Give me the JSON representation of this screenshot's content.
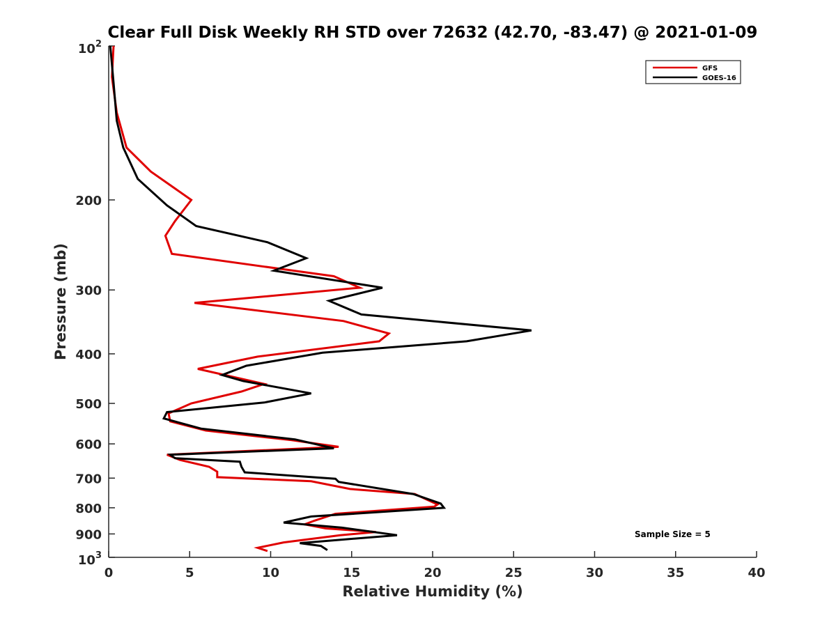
{
  "chart_data": {
    "type": "line",
    "title": "Clear Full Disk Weekly RH STD over 72632 (42.70, -83.47) @ 2021-01-09",
    "xlabel": "Relative Humidity (%)",
    "ylabel": "Pressure (mb)",
    "xlim": [
      0,
      40
    ],
    "ylim": [
      100,
      1000
    ],
    "yscale": "log",
    "y_reversed": true,
    "xticks": [
      "0",
      "5",
      "10",
      "15",
      "20",
      "25",
      "30",
      "35",
      "40"
    ],
    "yticks": [
      {
        "value": 100,
        "base": "10",
        "exp": "2",
        "label": ""
      },
      {
        "value": 200,
        "base": "",
        "exp": "",
        "label": "200"
      },
      {
        "value": 300,
        "base": "",
        "exp": "",
        "label": "300"
      },
      {
        "value": 400,
        "base": "",
        "exp": "",
        "label": "400"
      },
      {
        "value": 500,
        "base": "",
        "exp": "",
        "label": "500"
      },
      {
        "value": 600,
        "base": "",
        "exp": "",
        "label": "600"
      },
      {
        "value": 700,
        "base": "",
        "exp": "",
        "label": "700"
      },
      {
        "value": 800,
        "base": "",
        "exp": "",
        "label": "800"
      },
      {
        "value": 900,
        "base": "",
        "exp": "",
        "label": "900"
      },
      {
        "value": 1000,
        "base": "10",
        "exp": "3",
        "label": ""
      }
    ],
    "grid": false,
    "legend_position": "top-right",
    "annotation": "Sample Size = 5",
    "series": [
      {
        "name": "GFS",
        "color": "#e00000",
        "points": [
          [
            0.3,
            100
          ],
          [
            0.2,
            115
          ],
          [
            0.5,
            135
          ],
          [
            1.1,
            158
          ],
          [
            2.6,
            176
          ],
          [
            5.1,
            200
          ],
          [
            4.1,
            220
          ],
          [
            3.5,
            235
          ],
          [
            3.9,
            255
          ],
          [
            13.9,
            282
          ],
          [
            15.5,
            297
          ],
          [
            5.3,
            318
          ],
          [
            14.5,
            345
          ],
          [
            17.3,
            365
          ],
          [
            16.7,
            378
          ],
          [
            9.2,
            405
          ],
          [
            5.5,
            428
          ],
          [
            9.6,
            458
          ],
          [
            8.2,
            474
          ],
          [
            5.1,
            500
          ],
          [
            3.7,
            523
          ],
          [
            3.8,
            542
          ],
          [
            6.0,
            565
          ],
          [
            11.3,
            590
          ],
          [
            14.2,
            608
          ],
          [
            3.6,
            630
          ],
          [
            4.4,
            645
          ],
          [
            6.2,
            665
          ],
          [
            6.7,
            680
          ],
          [
            6.7,
            697
          ],
          [
            12.5,
            710
          ],
          [
            14.9,
            735
          ],
          [
            18.9,
            752
          ],
          [
            20.3,
            788
          ],
          [
            20.1,
            796
          ],
          [
            14.0,
            822
          ],
          [
            12.7,
            848
          ],
          [
            12.1,
            862
          ],
          [
            13.4,
            878
          ],
          [
            16.5,
            892
          ],
          [
            14.3,
            905
          ],
          [
            10.8,
            935
          ],
          [
            9.2,
            958
          ],
          [
            9.8,
            972
          ]
        ]
      },
      {
        "name": "GOES-16",
        "color": "#000000",
        "points": [
          [
            0.1,
            100
          ],
          [
            0.3,
            118
          ],
          [
            0.5,
            140
          ],
          [
            0.9,
            158
          ],
          [
            1.8,
            182
          ],
          [
            3.6,
            205
          ],
          [
            5.4,
            225
          ],
          [
            9.8,
            242
          ],
          [
            12.2,
            260
          ],
          [
            10.2,
            275
          ],
          [
            16.9,
            297
          ],
          [
            13.6,
            315
          ],
          [
            15.6,
            335
          ],
          [
            26.1,
            360
          ],
          [
            22.1,
            378
          ],
          [
            13.2,
            398
          ],
          [
            8.5,
            422
          ],
          [
            7.0,
            440
          ],
          [
            8.3,
            452
          ],
          [
            12.5,
            478
          ],
          [
            9.6,
            498
          ],
          [
            3.6,
            520
          ],
          [
            3.4,
            535
          ],
          [
            5.7,
            560
          ],
          [
            11.5,
            588
          ],
          [
            13.9,
            612
          ],
          [
            3.8,
            630
          ],
          [
            4.1,
            640
          ],
          [
            8.1,
            650
          ],
          [
            8.2,
            665
          ],
          [
            8.4,
            682
          ],
          [
            14.0,
            702
          ],
          [
            14.2,
            712
          ],
          [
            18.8,
            752
          ],
          [
            20.5,
            785
          ],
          [
            20.7,
            800
          ],
          [
            12.5,
            832
          ],
          [
            10.8,
            855
          ],
          [
            14.4,
            875
          ],
          [
            17.8,
            905
          ],
          [
            11.8,
            938
          ],
          [
            13.1,
            950
          ],
          [
            13.5,
            968
          ]
        ]
      }
    ]
  }
}
